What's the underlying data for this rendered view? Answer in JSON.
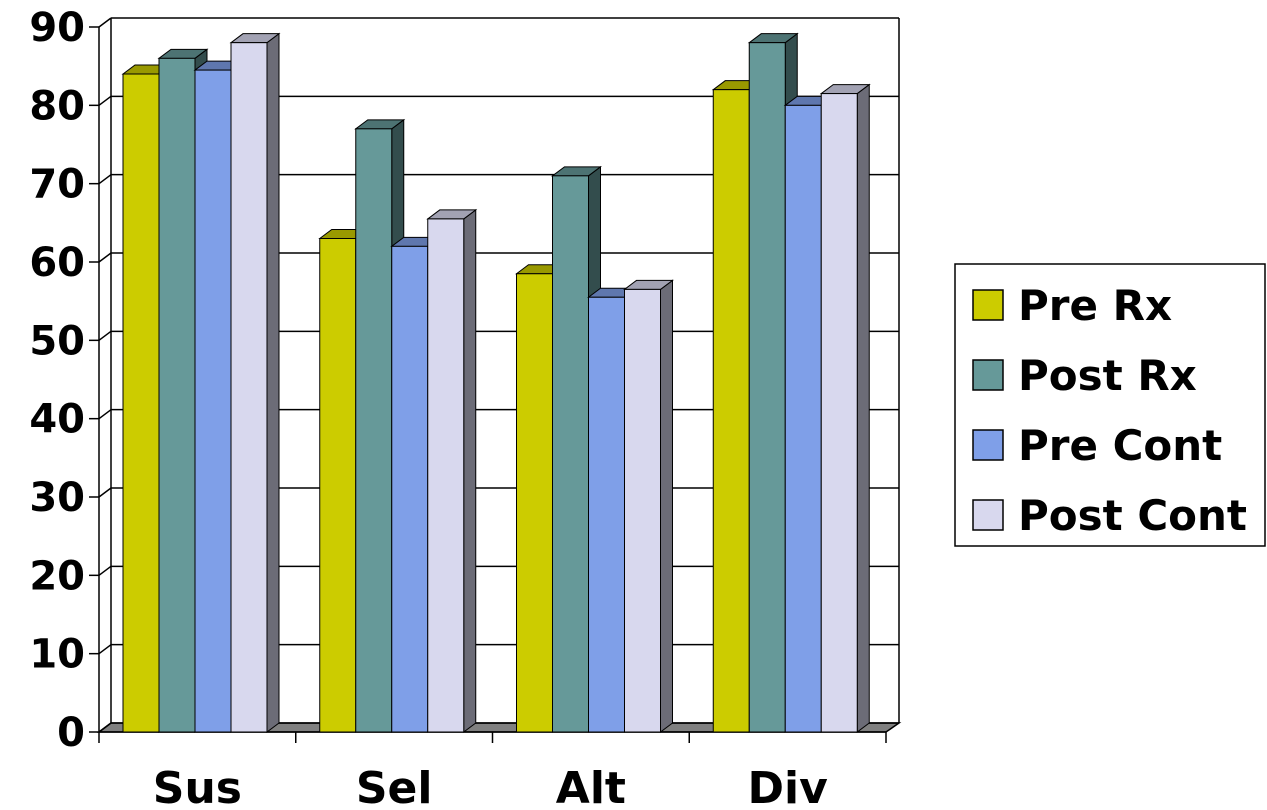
{
  "chart_data": {
    "type": "bar",
    "categories": [
      "Sus",
      "Sel",
      "Alt",
      "Div"
    ],
    "series": [
      {
        "name": "Pre Rx",
        "values": [
          84,
          63,
          58.5,
          82
        ]
      },
      {
        "name": "Post Rx",
        "values": [
          86,
          77,
          71,
          88
        ]
      },
      {
        "name": "Pre Cont",
        "values": [
          84.5,
          62,
          55.5,
          80
        ]
      },
      {
        "name": "Post Cont",
        "values": [
          88,
          65.5,
          56.5,
          81.5
        ]
      }
    ],
    "ylim": [
      0,
      90
    ],
    "yticks": [
      0,
      10,
      20,
      30,
      40,
      50,
      60,
      70,
      80,
      90
    ],
    "grid": true,
    "legend_position": "right",
    "style": "3d-clustered-column",
    "colors": {
      "Pre Rx": "#cccc00",
      "Post Rx": "#669999",
      "Pre Cont": "#7f9fe8",
      "Post Cont": "#d8d8ee"
    }
  }
}
